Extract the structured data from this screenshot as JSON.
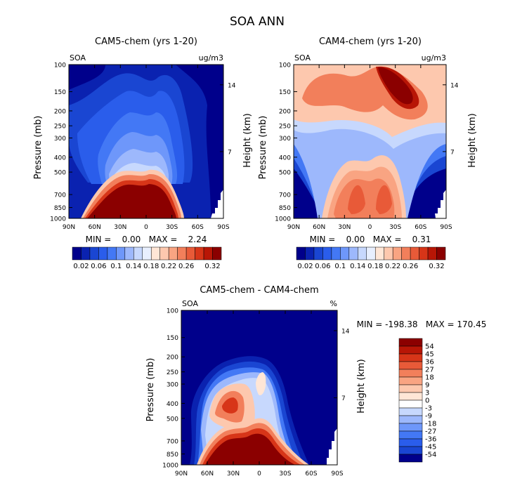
{
  "figure_title": "SOA ANN",
  "palette": [
    "#00008B",
    "#0A22B0",
    "#1A46D2",
    "#2A5DEB",
    "#4378F5",
    "#6E97FA",
    "#9DB8FC",
    "#C7D8FD",
    "#E8EFFE",
    "#FFE6D6",
    "#FDC8AE",
    "#F9A482",
    "#F27F5B",
    "#E85A38",
    "#D73518",
    "#B81606",
    "#8B0000"
  ],
  "panels": [
    {
      "title": "CAM5-chem (yrs 1-20)",
      "left_label": "SOA",
      "right_label": "ug/m3",
      "ylabel": "Pressure (mb)",
      "ylabel_right": "Height (km)",
      "stats_text": "MIN =    0.00   MAX =    2.24",
      "min": 0.0,
      "max": 2.24,
      "colorbar_labels": [
        "0.02",
        "0.06",
        "0.1",
        "0.14",
        "0.18",
        "0.22",
        "0.26",
        "0.32"
      ]
    },
    {
      "title": "CAM4-chem (yrs 1-20)",
      "left_label": "SOA",
      "right_label": "ug/m3",
      "ylabel": "Pressure (mb)",
      "ylabel_right": "Height (km)",
      "stats_text": "MIN =    0.00   MAX =    0.31",
      "min": 0.0,
      "max": 0.31,
      "colorbar_labels": [
        "0.02",
        "0.06",
        "0.1",
        "0.14",
        "0.18",
        "0.22",
        "0.26",
        "0.32"
      ]
    },
    {
      "title": "CAM5-chem - CAM4-chem",
      "left_label": "SOA",
      "right_label": "%",
      "ylabel": "Pressure (mb)",
      "ylabel_right": "Height (km)",
      "stats_text": "MIN = -198.38   MAX = 170.45",
      "min": -198.38,
      "max": 170.45,
      "colorbar_labels": [
        "54",
        "45",
        "36",
        "27",
        "18",
        "9",
        "3",
        "0",
        "-3",
        "-9",
        "-18",
        "-27",
        "-36",
        "-45",
        "-54"
      ]
    }
  ],
  "chart_data": {
    "type": "heatmap",
    "title": "SOA ANN",
    "x_ticks": [
      "90N",
      "60N",
      "30N",
      "0",
      "30S",
      "60S",
      "90S"
    ],
    "x_values": [
      90,
      60,
      30,
      0,
      -30,
      -60,
      -90
    ],
    "y_ticks": [
      "100",
      "150",
      "200",
      "250",
      "300",
      "400",
      "500",
      "700",
      "850",
      "1000"
    ],
    "y_values": [
      100,
      150,
      200,
      250,
      300,
      400,
      500,
      700,
      850,
      1000
    ],
    "height_ticks": [
      "14",
      "7"
    ],
    "height_values_km": [
      14,
      7
    ],
    "pressure_range_mb": [
      1000,
      100
    ],
    "latitude_range": [
      90,
      -90
    ],
    "fields": [
      {
        "name": "CAM5-chem (yrs 1-20)",
        "units": "ug/m3",
        "min": 0.0,
        "max": 2.24,
        "levels": [
          0.02,
          0.04,
          0.06,
          0.08,
          0.1,
          0.12,
          0.14,
          0.16,
          0.18,
          0.2,
          0.22,
          0.24,
          0.26,
          0.28,
          0.3,
          0.32
        ],
        "description_features": "maximum (>0.32) near surface 850-1000 mb between 60N and 45S; low values aloft"
      },
      {
        "name": "CAM4-chem (yrs 1-20)",
        "units": "ug/m3",
        "min": 0.0,
        "max": 0.31,
        "levels": [
          0.02,
          0.04,
          0.06,
          0.08,
          0.1,
          0.12,
          0.14,
          0.16,
          0.18,
          0.2,
          0.22,
          0.24,
          0.26,
          0.28,
          0.3,
          0.32
        ],
        "description_features": "maxima near 150 mb around 0-30S and near 700 mb around 20N and 15S"
      },
      {
        "name": "CAM5-chem - CAM4-chem",
        "units": "%",
        "min": -198.38,
        "max": 170.45,
        "levels": [
          -54,
          -45,
          -36,
          -27,
          -18,
          -9,
          -3,
          0,
          3,
          9,
          18,
          27,
          36,
          45,
          54
        ],
        "description_features": "positive near surface 60N-45S; strongly negative in upper troposphere"
      }
    ]
  }
}
